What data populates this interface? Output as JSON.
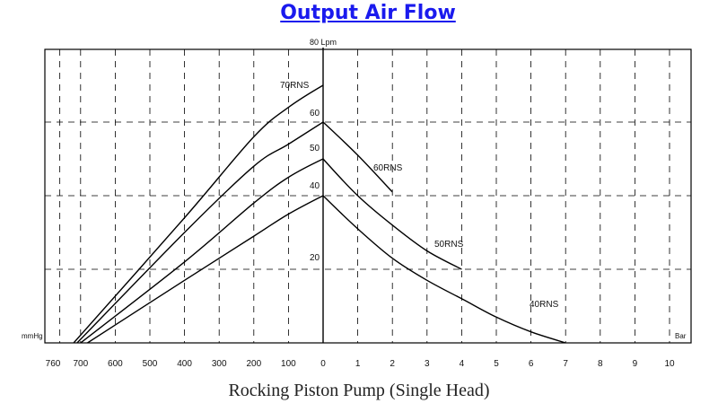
{
  "title": "Output Air Flow",
  "caption": "Rocking Piston Pump (Single Head)",
  "chart_data": {
    "type": "line",
    "title": "Output Air Flow",
    "xlabel_left": "mmHg",
    "xlabel_right": "Bar",
    "ylabel": "80 Lpm",
    "vacuum_ticks": [
      "760",
      "700",
      "600",
      "500",
      "400",
      "300",
      "200",
      "100"
    ],
    "pressure_ticks": [
      "0",
      "1",
      "2",
      "3",
      "4",
      "5",
      "6",
      "7",
      "8",
      "9",
      "10"
    ],
    "y_ticks": [
      "20",
      "40",
      "50",
      "60"
    ],
    "ylim": [
      0,
      80
    ],
    "grid": true,
    "series": [
      {
        "name": "70RNS",
        "vacuum": [
          [
            720,
            0
          ],
          [
            400,
            34
          ],
          [
            200,
            56
          ],
          [
            100,
            64
          ],
          [
            0,
            70
          ]
        ],
        "pressure": []
      },
      {
        "name": "60RNS",
        "vacuum": [
          [
            710,
            0
          ],
          [
            400,
            30
          ],
          [
            200,
            48
          ],
          [
            100,
            54
          ],
          [
            0,
            60
          ]
        ],
        "pressure": [
          [
            0,
            60
          ],
          [
            1,
            51
          ],
          [
            2,
            41
          ]
        ]
      },
      {
        "name": "50RNS",
        "vacuum": [
          [
            700,
            0
          ],
          [
            400,
            22
          ],
          [
            200,
            38
          ],
          [
            100,
            45
          ],
          [
            0,
            50
          ]
        ],
        "pressure": [
          [
            0,
            50
          ],
          [
            1,
            40
          ],
          [
            2,
            32
          ],
          [
            3,
            25
          ],
          [
            4,
            20
          ]
        ]
      },
      {
        "name": "40RNS",
        "vacuum": [
          [
            680,
            0
          ],
          [
            400,
            17
          ],
          [
            200,
            29
          ],
          [
            100,
            35
          ],
          [
            0,
            40
          ]
        ],
        "pressure": [
          [
            0,
            40
          ],
          [
            1,
            31
          ],
          [
            2,
            23
          ],
          [
            3,
            17
          ],
          [
            4,
            12
          ],
          [
            5,
            7
          ],
          [
            6,
            3
          ],
          [
            7,
            0
          ]
        ]
      }
    ]
  }
}
